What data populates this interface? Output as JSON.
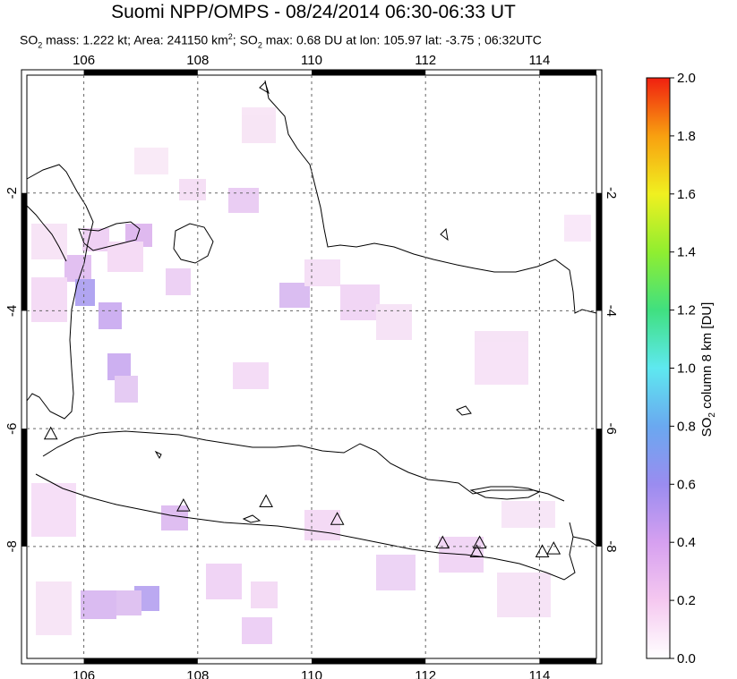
{
  "title": "Suomi NPP/OMPS - 08/24/2014 06:30-06:33 UT",
  "subtitle": {
    "so2_prefix": "SO",
    "so2_sub": "2",
    "mass_text": " mass: 1.222 kt; Area: 241150 km",
    "area_sup": "2",
    "max_prefix": "; SO",
    "max_sub": "2",
    "max_text": " max: 0.68 DU at lon: 105.97 lat: -3.75 ; 06:32UTC"
  },
  "map": {
    "lon_ticks": [
      "106",
      "108",
      "110",
      "112",
      "114"
    ],
    "lon_values": [
      106,
      108,
      110,
      112,
      114
    ],
    "lat_ticks": [
      "-2",
      "-4",
      "-6",
      "-8"
    ],
    "lat_values": [
      -2,
      -4,
      -6,
      -8
    ],
    "lon_range": [
      105.0,
      115.0
    ],
    "lat_range": [
      -9.9,
      -0.0
    ],
    "volcano_markers": [
      {
        "lon": 105.42,
        "lat": -6.1
      },
      {
        "lon": 107.75,
        "lat": -7.32
      },
      {
        "lon": 109.2,
        "lat": -7.25
      },
      {
        "lon": 110.45,
        "lat": -7.55
      },
      {
        "lon": 112.3,
        "lat": -7.95
      },
      {
        "lon": 112.9,
        "lat": -8.1
      },
      {
        "lon": 112.95,
        "lat": -7.95
      },
      {
        "lon": 114.05,
        "lat": -8.1
      },
      {
        "lon": 114.25,
        "lat": -8.05
      }
    ],
    "grid": true
  },
  "colorbar": {
    "ticks": [
      "2.0",
      "1.8",
      "1.6",
      "1.4",
      "1.2",
      "1.0",
      "0.8",
      "0.6",
      "0.4",
      "0.2",
      "0.0"
    ],
    "label_prefix": "SO",
    "label_sub": "2",
    "label_text": " column 8 km [DU]",
    "colors": [
      "#ffffff",
      "#f5c8f0",
      "#d6a0f0",
      "#9a8cf0",
      "#6aa8f0",
      "#5ee8f0",
      "#40e080",
      "#90ee30",
      "#f0f020",
      "#f8a010",
      "#f02010"
    ]
  }
}
